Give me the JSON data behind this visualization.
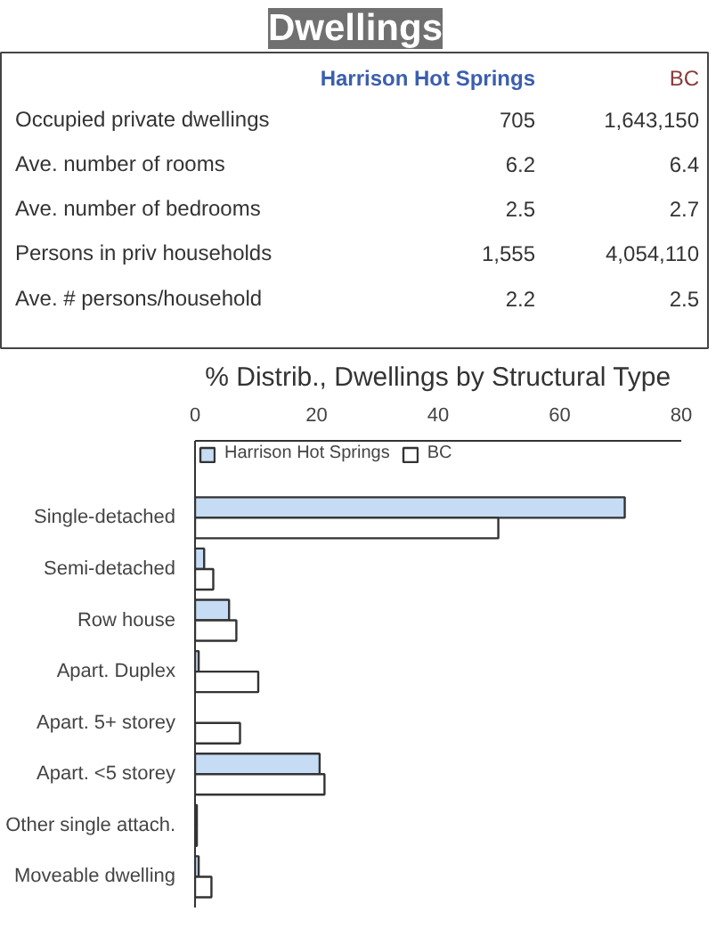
{
  "chart_data": [
    {
      "type": "other",
      "title": "Dwellings",
      "annotations": [
        "Harrison Hot Springs",
        "BC",
        "Occupied private dwellings",
        "705",
        "1,643,150",
        "Ave. number of rooms",
        "6.2",
        "6.4",
        "Ave. number of bedrooms",
        "2.5",
        "2.7",
        "Persons in priv households",
        "1,555",
        "4,054,110",
        "Ave. # persons/household",
        "2.2",
        "2.5"
      ]
    },
    {
      "type": "bar",
      "orientation": "horizontal",
      "title": "% Distrib., Dwellings by Structural Type",
      "categories": [
        "Single-detached",
        "Semi-detached",
        "Row house",
        "Apart. Duplex",
        "Apart. 5+ storey",
        "Apart. <5 storey",
        "Other single attach.",
        "Moveable dwelling"
      ],
      "series": [
        {
          "name": "Harrison Hot Springs",
          "color": "#c6dcf5",
          "values": [
            70.7,
            1.5,
            5.6,
            0.6,
            0,
            20.5,
            0.3,
            0.6
          ]
        },
        {
          "name": "BC",
          "color": "#ffffff",
          "values": [
            49.9,
            3,
            6.8,
            10.4,
            7.4,
            21.3,
            0.3,
            2.7
          ]
        }
      ],
      "xlim": [
        0,
        80
      ],
      "xticks": [
        0,
        20,
        40,
        60,
        80
      ],
      "grid": false,
      "legend": "top left"
    }
  ]
}
